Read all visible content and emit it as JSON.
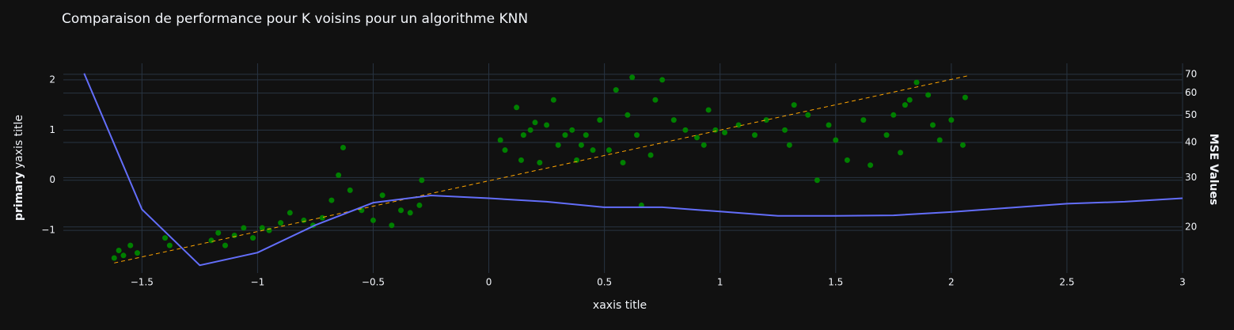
{
  "chart_data": {
    "type": "scatter",
    "title": "Comparaison de performance pour K voisins pour un algorithme KNN",
    "xlabel": "xaxis title",
    "ylabel_parts": [
      "primary",
      "yaxis title"
    ],
    "y2label": "MSE Values",
    "xlim": [
      -1.84,
      3
    ],
    "ylim": [
      -1.85,
      2.33
    ],
    "y2lim": [
      13.7,
      76.6
    ],
    "y2log": true,
    "grid": true,
    "xticks": [
      {
        "value": -1.5,
        "label": "−1.5"
      },
      {
        "value": -1,
        "label": "−1"
      },
      {
        "value": -0.5,
        "label": "−0.5"
      },
      0,
      0.5,
      1,
      1.5,
      2,
      2.5,
      3
    ],
    "yticks": [
      {
        "value": -1,
        "label": "−1"
      },
      0,
      1,
      2
    ],
    "y2ticks": [
      20,
      30,
      40,
      50,
      60,
      70
    ],
    "series": [
      {
        "mode": "markers",
        "color": "#008000",
        "x": [
          -1.62,
          -1.6,
          -1.58,
          -1.55,
          -1.52,
          -1.4,
          -1.38,
          -1.2,
          -1.17,
          -1.14,
          -1.1,
          -1.06,
          -1.02,
          -0.98,
          -0.95,
          -0.9,
          -0.86,
          -0.8,
          -0.76,
          -0.72,
          -0.68,
          -0.65,
          -0.63,
          -0.6,
          -0.55,
          -0.5,
          -0.46,
          -0.42,
          -0.38,
          -0.34,
          -0.3,
          -0.29,
          0.05,
          0.07,
          0.12,
          0.14,
          0.15,
          0.18,
          0.2,
          0.22,
          0.25,
          0.28,
          0.3,
          0.33,
          0.36,
          0.38,
          0.4,
          0.42,
          0.45,
          0.48,
          0.52,
          0.55,
          0.58,
          0.6,
          0.62,
          0.64,
          0.66,
          0.7,
          0.72,
          0.75,
          0.8,
          0.85,
          0.9,
          0.93,
          0.95,
          0.98,
          1.02,
          1.08,
          1.15,
          1.2,
          1.28,
          1.3,
          1.32,
          1.38,
          1.42,
          1.47,
          1.5,
          1.55,
          1.62,
          1.65,
          1.72,
          1.75,
          1.78,
          1.8,
          1.82,
          1.85,
          1.9,
          1.92,
          1.95,
          2.0,
          2.05,
          2.06
        ],
        "values": [
          -1.55,
          -1.4,
          -1.5,
          -1.3,
          -1.45,
          -1.15,
          -1.3,
          -1.2,
          -1.05,
          -1.3,
          -1.1,
          -0.95,
          -1.15,
          -0.95,
          -1.0,
          -0.85,
          -0.65,
          -0.8,
          -0.9,
          -0.75,
          -0.4,
          0.1,
          0.65,
          -0.2,
          -0.6,
          -0.8,
          -0.3,
          -0.9,
          -0.6,
          -0.65,
          -0.5,
          0.0,
          0.8,
          0.6,
          1.45,
          0.4,
          0.9,
          1.0,
          1.15,
          0.35,
          1.1,
          1.6,
          0.7,
          0.9,
          1.0,
          0.4,
          0.7,
          0.9,
          0.6,
          1.2,
          0.6,
          1.8,
          0.35,
          1.3,
          2.05,
          0.9,
          -0.5,
          0.5,
          1.6,
          2.0,
          1.2,
          1.0,
          0.85,
          0.7,
          1.4,
          1.0,
          0.95,
          1.1,
          0.9,
          1.2,
          1.0,
          0.7,
          1.5,
          1.3,
          0.0,
          1.1,
          0.8,
          0.4,
          1.2,
          0.3,
          0.9,
          1.3,
          0.55,
          1.5,
          1.6,
          1.95,
          1.7,
          1.1,
          0.8,
          1.2,
          0.7,
          1.65
        ]
      },
      {
        "mode": "lines",
        "dash": true,
        "color": "#ffa500",
        "x": [
          -1.62,
          2.07
        ],
        "values": [
          -1.65,
          2.08
        ]
      },
      {
        "mode": "lines",
        "axis": "y2",
        "color": "#636efa",
        "x": [
          -1.75,
          -1.5,
          -1.25,
          -1,
          -0.75,
          -0.5,
          -0.25,
          0,
          0.25,
          0.5,
          0.75,
          1,
          1.25,
          1.5,
          1.75,
          2,
          2.25,
          2.5,
          2.75,
          3
        ],
        "values": [
          70.5,
          23.1,
          14.6,
          16.2,
          20.3,
          24.4,
          25.9,
          25.3,
          24.6,
          23.5,
          23.5,
          22.7,
          21.9,
          21.9,
          22.0,
          22.6,
          23.4,
          24.2,
          24.6,
          25.3
        ]
      }
    ]
  }
}
